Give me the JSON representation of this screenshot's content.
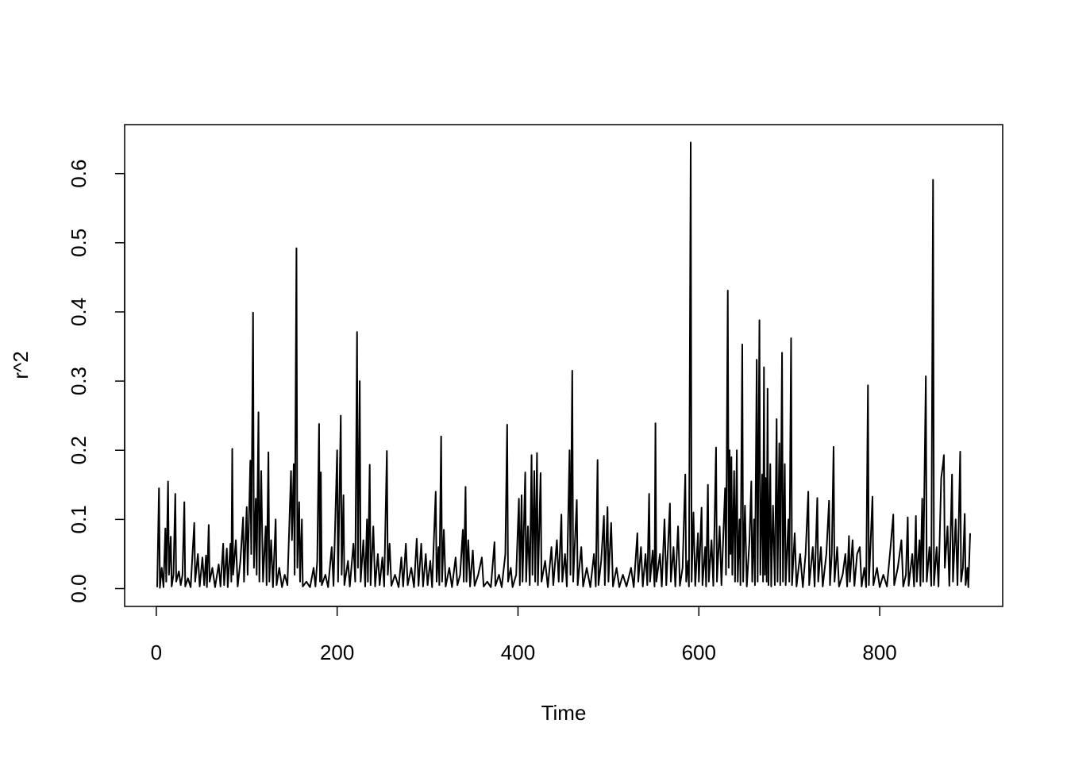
{
  "chart_data": {
    "type": "line",
    "x_label": "Time",
    "y_label": "r^2",
    "xlim": [
      -35,
      936
    ],
    "ylim": [
      -0.0258,
      0.6708
    ],
    "xticks": [
      0,
      200,
      400,
      600,
      800
    ],
    "yticks": [
      {
        "value": 0,
        "label": "0.0"
      },
      0.1,
      0.2,
      0.3,
      0.4,
      0.5,
      0.6
    ],
    "color": "#000000",
    "x": [
      1,
      3,
      4,
      6,
      8,
      10,
      11,
      13,
      14,
      16,
      17,
      19,
      21,
      22,
      25,
      27,
      29,
      31,
      32,
      35,
      38,
      42,
      43,
      46,
      48,
      51,
      53,
      55,
      56,
      58,
      59,
      62,
      65,
      69,
      71,
      74,
      75,
      78,
      79,
      82,
      83,
      84,
      85,
      88,
      90,
      93,
      96,
      97,
      100,
      101,
      104,
      105,
      107,
      108,
      110,
      111,
      113,
      114,
      116,
      118,
      121,
      122,
      124,
      125,
      127,
      129,
      132,
      133,
      136,
      139,
      142,
      145,
      149,
      150,
      152,
      153,
      155,
      156,
      158,
      159,
      161,
      162,
      166,
      170,
      174,
      176,
      178,
      180,
      181,
      182,
      183,
      187,
      190,
      194,
      196,
      200,
      201,
      204,
      205,
      207,
      208,
      212,
      214,
      218,
      220,
      222,
      223,
      225,
      226,
      229,
      231,
      233,
      234,
      236,
      237,
      240,
      242,
      245,
      247,
      250,
      252,
      255,
      256,
      258,
      260,
      264,
      268,
      271,
      273,
      276,
      278,
      282,
      285,
      288,
      290,
      293,
      295,
      298,
      300,
      303,
      305,
      309,
      310,
      312,
      313,
      315,
      316,
      318,
      320,
      324,
      327,
      331,
      333,
      336,
      339,
      340,
      342,
      343,
      345,
      347,
      350,
      352,
      356,
      360,
      362,
      366,
      370,
      374,
      375,
      379,
      382,
      386,
      388,
      389,
      392,
      394,
      398,
      401,
      402,
      404,
      405,
      408,
      409,
      411,
      413,
      415,
      416,
      418,
      419,
      421,
      422,
      425,
      426,
      430,
      433,
      437,
      439,
      443,
      445,
      448,
      449,
      452,
      454,
      457,
      458,
      460,
      461,
      465,
      466,
      470,
      472,
      476,
      480,
      484,
      486,
      488,
      489,
      492,
      495,
      496,
      499,
      500,
      503,
      505,
      509,
      512,
      516,
      520,
      525,
      528,
      532,
      533,
      536,
      538,
      541,
      543,
      545,
      546,
      549,
      551,
      552,
      553,
      557,
      559,
      562,
      564,
      568,
      569,
      572,
      574,
      577,
      579,
      582,
      585,
      586,
      588,
      589,
      591,
      592,
      594,
      596,
      599,
      600,
      603,
      604,
      607,
      608,
      610,
      611,
      614,
      616,
      619,
      620,
      623,
      625,
      629,
      630,
      632,
      633,
      634,
      635,
      636,
      637,
      639,
      640,
      642,
      643,
      645,
      646,
      648,
      649,
      651,
      653,
      656,
      658,
      659,
      661,
      662,
      664,
      665,
      667,
      668,
      670,
      671,
      672,
      673,
      674,
      675,
      676,
      677,
      679,
      680,
      682,
      684,
      686,
      687,
      689,
      690,
      692,
      693,
      695,
      696,
      699,
      700,
      702,
      703,
      706,
      708,
      712,
      715,
      718,
      721,
      722,
      726,
      728,
      731,
      732,
      735,
      737,
      741,
      744,
      745,
      747,
      749,
      750,
      753,
      755,
      759,
      762,
      764,
      766,
      767,
      770,
      772,
      775,
      778,
      780,
      783,
      785,
      787,
      788,
      792,
      793,
      797,
      800,
      804,
      808,
      812,
      815,
      816,
      820,
      824,
      826,
      829,
      831,
      832,
      836,
      838,
      840,
      841,
      844,
      845,
      847,
      848,
      851,
      852,
      855,
      857,
      859,
      860,
      863,
      865,
      868,
      870,
      871,
      872,
      875,
      877,
      880,
      881,
      884,
      886,
      889,
      890,
      892,
      894,
      895,
      897,
      898,
      900
    ],
    "values": [
      0.002,
      0.145,
      0.001,
      0.03,
      0.002,
      0.087,
      0.01,
      0.155,
      0.02,
      0.075,
      0.003,
      0.02,
      0.137,
      0.01,
      0.025,
      0.005,
      0.02,
      0.125,
      0.003,
      0.015,
      0.002,
      0.095,
      0.01,
      0.05,
      0.003,
      0.045,
      0.005,
      0.048,
      0.002,
      0.092,
      0.01,
      0.03,
      0.002,
      0.035,
      0.003,
      0.065,
      0.005,
      0.058,
      0.002,
      0.065,
      0.01,
      0.202,
      0.02,
      0.07,
      0.003,
      0.04,
      0.103,
      0.01,
      0.118,
      0.02,
      0.185,
      0.05,
      0.399,
      0.03,
      0.13,
      0.02,
      0.255,
      0.01,
      0.17,
      0.01,
      0.09,
      0.005,
      0.197,
      0.01,
      0.07,
      0.002,
      0.1,
      0.005,
      0.03,
      0.002,
      0.02,
      0.005,
      0.17,
      0.07,
      0.18,
      0.02,
      0.492,
      0.03,
      0.125,
      0.01,
      0.1,
      0.003,
      0.01,
      0.002,
      0.03,
      0.003,
      0.04,
      0.238,
      0.01,
      0.168,
      0.005,
      0.02,
      0.002,
      0.06,
      0.004,
      0.2,
      0.01,
      0.25,
      0.02,
      0.135,
      0.005,
      0.04,
      0.003,
      0.065,
      0.01,
      0.371,
      0.03,
      0.3,
      0.01,
      0.07,
      0.003,
      0.1,
      0.01,
      0.179,
      0.005,
      0.09,
      0.003,
      0.05,
      0.005,
      0.045,
      0.003,
      0.199,
      0.02,
      0.065,
      0.004,
      0.02,
      0.002,
      0.045,
      0.003,
      0.065,
      0.005,
      0.03,
      0.002,
      0.072,
      0.004,
      0.065,
      0.003,
      0.05,
      0.005,
      0.04,
      0.002,
      0.14,
      0.01,
      0.06,
      0.005,
      0.22,
      0.01,
      0.085,
      0.003,
      0.03,
      0.002,
      0.045,
      0.005,
      0.02,
      0.085,
      0.01,
      0.147,
      0.01,
      0.07,
      0.003,
      0.055,
      0.004,
      0.02,
      0.045,
      0.003,
      0.01,
      0.002,
      0.067,
      0.004,
      0.02,
      0.002,
      0.05,
      0.237,
      0.01,
      0.03,
      0.002,
      0.02,
      0.13,
      0.005,
      0.135,
      0.01,
      0.168,
      0.01,
      0.09,
      0.005,
      0.193,
      0.02,
      0.17,
      0.01,
      0.196,
      0.005,
      0.167,
      0.01,
      0.04,
      0.002,
      0.06,
      0.005,
      0.07,
      0.01,
      0.107,
      0.01,
      0.05,
      0.003,
      0.2,
      0.02,
      0.315,
      0.01,
      0.128,
      0.005,
      0.06,
      0.003,
      0.03,
      0.002,
      0.05,
      0.003,
      0.186,
      0.005,
      0.04,
      0.105,
      0.005,
      0.118,
      0.01,
      0.095,
      0.003,
      0.03,
      0.002,
      0.02,
      0.003,
      0.03,
      0.002,
      0.08,
      0.01,
      0.06,
      0.003,
      0.05,
      0.005,
      0.137,
      0.01,
      0.055,
      0.003,
      0.239,
      0.01,
      0.05,
      0.003,
      0.1,
      0.005,
      0.123,
      0.01,
      0.06,
      0.003,
      0.09,
      0.004,
      0.03,
      0.165,
      0.01,
      0.04,
      0.003,
      0.645,
      0.01,
      0.11,
      0.004,
      0.08,
      0.01,
      0.117,
      0.005,
      0.06,
      0.003,
      0.15,
      0.01,
      0.07,
      0.004,
      0.204,
      0.01,
      0.09,
      0.005,
      0.145,
      0.02,
      0.431,
      0.03,
      0.2,
      0.05,
      0.19,
      0.02,
      0.17,
      0.01,
      0.2,
      0.01,
      0.1,
      0.005,
      0.353,
      0.01,
      0.12,
      0.003,
      0.07,
      0.155,
      0.01,
      0.1,
      0.005,
      0.331,
      0.01,
      0.388,
      0.02,
      0.165,
      0.01,
      0.32,
      0.02,
      0.16,
      0.01,
      0.289,
      0.005,
      0.18,
      0.003,
      0.12,
      0.005,
      0.245,
      0.01,
      0.21,
      0.005,
      0.341,
      0.01,
      0.18,
      0.005,
      0.1,
      0.01,
      0.362,
      0.005,
      0.08,
      0.003,
      0.05,
      0.002,
      0.05,
      0.14,
      0.005,
      0.06,
      0.003,
      0.131,
      0.01,
      0.06,
      0.003,
      0.05,
      0.127,
      0.005,
      0.05,
      0.205,
      0.01,
      0.06,
      0.003,
      0.02,
      0.05,
      0.003,
      0.076,
      0.01,
      0.07,
      0.004,
      0.05,
      0.06,
      0.003,
      0.03,
      0.002,
      0.294,
      0.005,
      0.133,
      0.005,
      0.03,
      0.002,
      0.02,
      0.003,
      0.06,
      0.107,
      0.005,
      0.03,
      0.07,
      0.003,
      0.02,
      0.103,
      0.004,
      0.05,
      0.003,
      0.105,
      0.01,
      0.07,
      0.004,
      0.13,
      0.01,
      0.307,
      0.01,
      0.06,
      0.004,
      0.591,
      0.005,
      0.06,
      0.003,
      0.16,
      0.18,
      0.193,
      0.03,
      0.09,
      0.004,
      0.165,
      0.01,
      0.1,
      0.005,
      0.198,
      0.01,
      0.03,
      0.108,
      0.005,
      0.03,
      0.002,
      0.08
    ]
  }
}
